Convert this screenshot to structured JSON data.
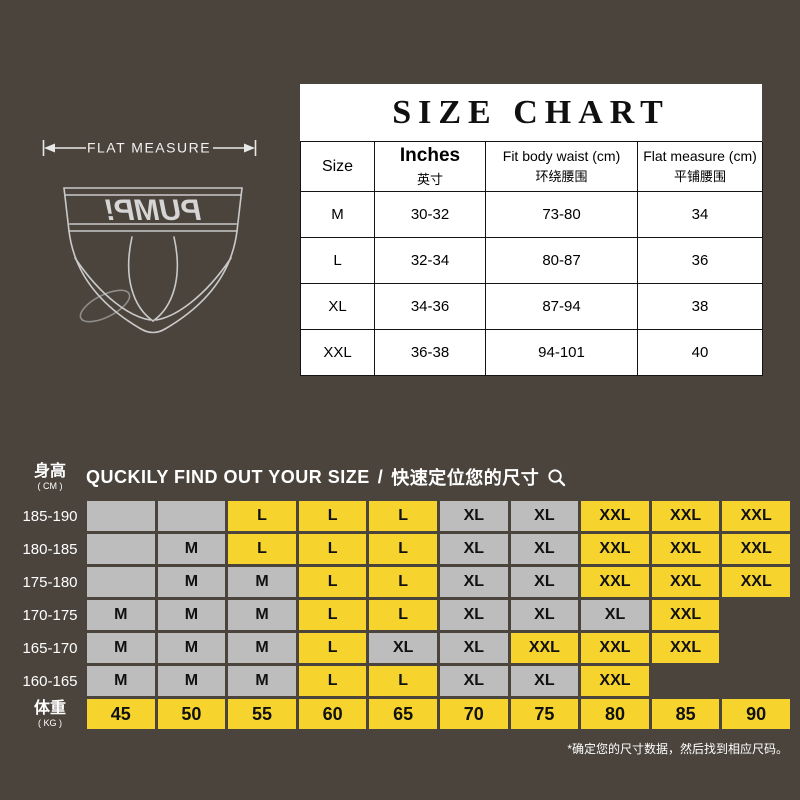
{
  "page": {
    "background_color": "#4a443c",
    "footnote": "*确定您的尺寸数据，然后找到相应尺码。"
  },
  "colors": {
    "cell_gray": "#bdbdbd",
    "cell_yellow": "#f6d42d",
    "table_bg": "#ffffff",
    "grid_line": "#141414"
  },
  "flat_measure": {
    "label": "FLAT MEASURE"
  },
  "briefs": {
    "waistband_text": "PUMP!"
  },
  "size_chart": {
    "title": "SIZE CHART",
    "columns": [
      {
        "en": "Size",
        "zh": ""
      },
      {
        "en": "Inches",
        "zh": "英寸"
      },
      {
        "en": "Fit body waist (cm)",
        "zh": "环绕腰围"
      },
      {
        "en": "Flat measure (cm)",
        "zh": "平铺腰围"
      }
    ],
    "rows": [
      [
        "M",
        "30-32",
        "73-80",
        "34"
      ],
      [
        "L",
        "32-34",
        "80-87",
        "36"
      ],
      [
        "XL",
        "34-36",
        "87-94",
        "38"
      ],
      [
        "XXL",
        "36-38",
        "94-101",
        "40"
      ]
    ]
  },
  "size_finder": {
    "title_en": "QUCKILY FIND OUT YOUR SIZE",
    "title_separator": "/",
    "title_zh": "快速定位您的尺寸",
    "height_axis": {
      "label": "身高",
      "unit": "( CM )"
    },
    "weight_axis": {
      "label": "体重",
      "unit": "( KG )"
    },
    "weights": [
      "45",
      "50",
      "55",
      "60",
      "65",
      "70",
      "75",
      "80",
      "85",
      "90"
    ],
    "rows": [
      {
        "height": "185-190",
        "cells": [
          {
            "size": "",
            "bg": "gray"
          },
          {
            "size": "",
            "bg": "gray"
          },
          {
            "size": "L",
            "bg": "yellow"
          },
          {
            "size": "L",
            "bg": "yellow"
          },
          {
            "size": "L",
            "bg": "yellow"
          },
          {
            "size": "XL",
            "bg": "gray"
          },
          {
            "size": "XL",
            "bg": "gray"
          },
          {
            "size": "XXL",
            "bg": "yellow"
          },
          {
            "size": "XXL",
            "bg": "yellow"
          },
          {
            "size": "XXL",
            "bg": "yellow"
          }
        ]
      },
      {
        "height": "180-185",
        "cells": [
          {
            "size": "",
            "bg": "gray"
          },
          {
            "size": "M",
            "bg": "gray"
          },
          {
            "size": "L",
            "bg": "yellow"
          },
          {
            "size": "L",
            "bg": "yellow"
          },
          {
            "size": "L",
            "bg": "yellow"
          },
          {
            "size": "XL",
            "bg": "gray"
          },
          {
            "size": "XL",
            "bg": "gray"
          },
          {
            "size": "XXL",
            "bg": "yellow"
          },
          {
            "size": "XXL",
            "bg": "yellow"
          },
          {
            "size": "XXL",
            "bg": "yellow"
          }
        ]
      },
      {
        "height": "175-180",
        "cells": [
          {
            "size": "",
            "bg": "gray"
          },
          {
            "size": "M",
            "bg": "gray"
          },
          {
            "size": "M",
            "bg": "gray"
          },
          {
            "size": "L",
            "bg": "yellow"
          },
          {
            "size": "L",
            "bg": "yellow"
          },
          {
            "size": "XL",
            "bg": "gray"
          },
          {
            "size": "XL",
            "bg": "gray"
          },
          {
            "size": "XXL",
            "bg": "yellow"
          },
          {
            "size": "XXL",
            "bg": "yellow"
          },
          {
            "size": "XXL",
            "bg": "yellow"
          }
        ]
      },
      {
        "height": "170-175",
        "cells": [
          {
            "size": "M",
            "bg": "gray"
          },
          {
            "size": "M",
            "bg": "gray"
          },
          {
            "size": "M",
            "bg": "gray"
          },
          {
            "size": "L",
            "bg": "yellow"
          },
          {
            "size": "L",
            "bg": "yellow"
          },
          {
            "size": "XL",
            "bg": "gray"
          },
          {
            "size": "XL",
            "bg": "gray"
          },
          {
            "size": "XL",
            "bg": "gray"
          },
          {
            "size": "XXL",
            "bg": "yellow"
          },
          {
            "size": "",
            "bg": "none"
          }
        ]
      },
      {
        "height": "165-170",
        "cells": [
          {
            "size": "M",
            "bg": "gray"
          },
          {
            "size": "M",
            "bg": "gray"
          },
          {
            "size": "M",
            "bg": "gray"
          },
          {
            "size": "L",
            "bg": "yellow"
          },
          {
            "size": "XL",
            "bg": "gray"
          },
          {
            "size": "XL",
            "bg": "gray"
          },
          {
            "size": "XXL",
            "bg": "yellow"
          },
          {
            "size": "XXL",
            "bg": "yellow"
          },
          {
            "size": "XXL",
            "bg": "yellow"
          },
          {
            "size": "",
            "bg": "none"
          }
        ]
      },
      {
        "height": "160-165",
        "cells": [
          {
            "size": "M",
            "bg": "gray"
          },
          {
            "size": "M",
            "bg": "gray"
          },
          {
            "size": "M",
            "bg": "gray"
          },
          {
            "size": "L",
            "bg": "yellow"
          },
          {
            "size": "L",
            "bg": "yellow"
          },
          {
            "size": "XL",
            "bg": "gray"
          },
          {
            "size": "XL",
            "bg": "gray"
          },
          {
            "size": "XXL",
            "bg": "yellow"
          },
          {
            "size": "",
            "bg": "none"
          },
          {
            "size": "",
            "bg": "none"
          }
        ]
      }
    ]
  }
}
